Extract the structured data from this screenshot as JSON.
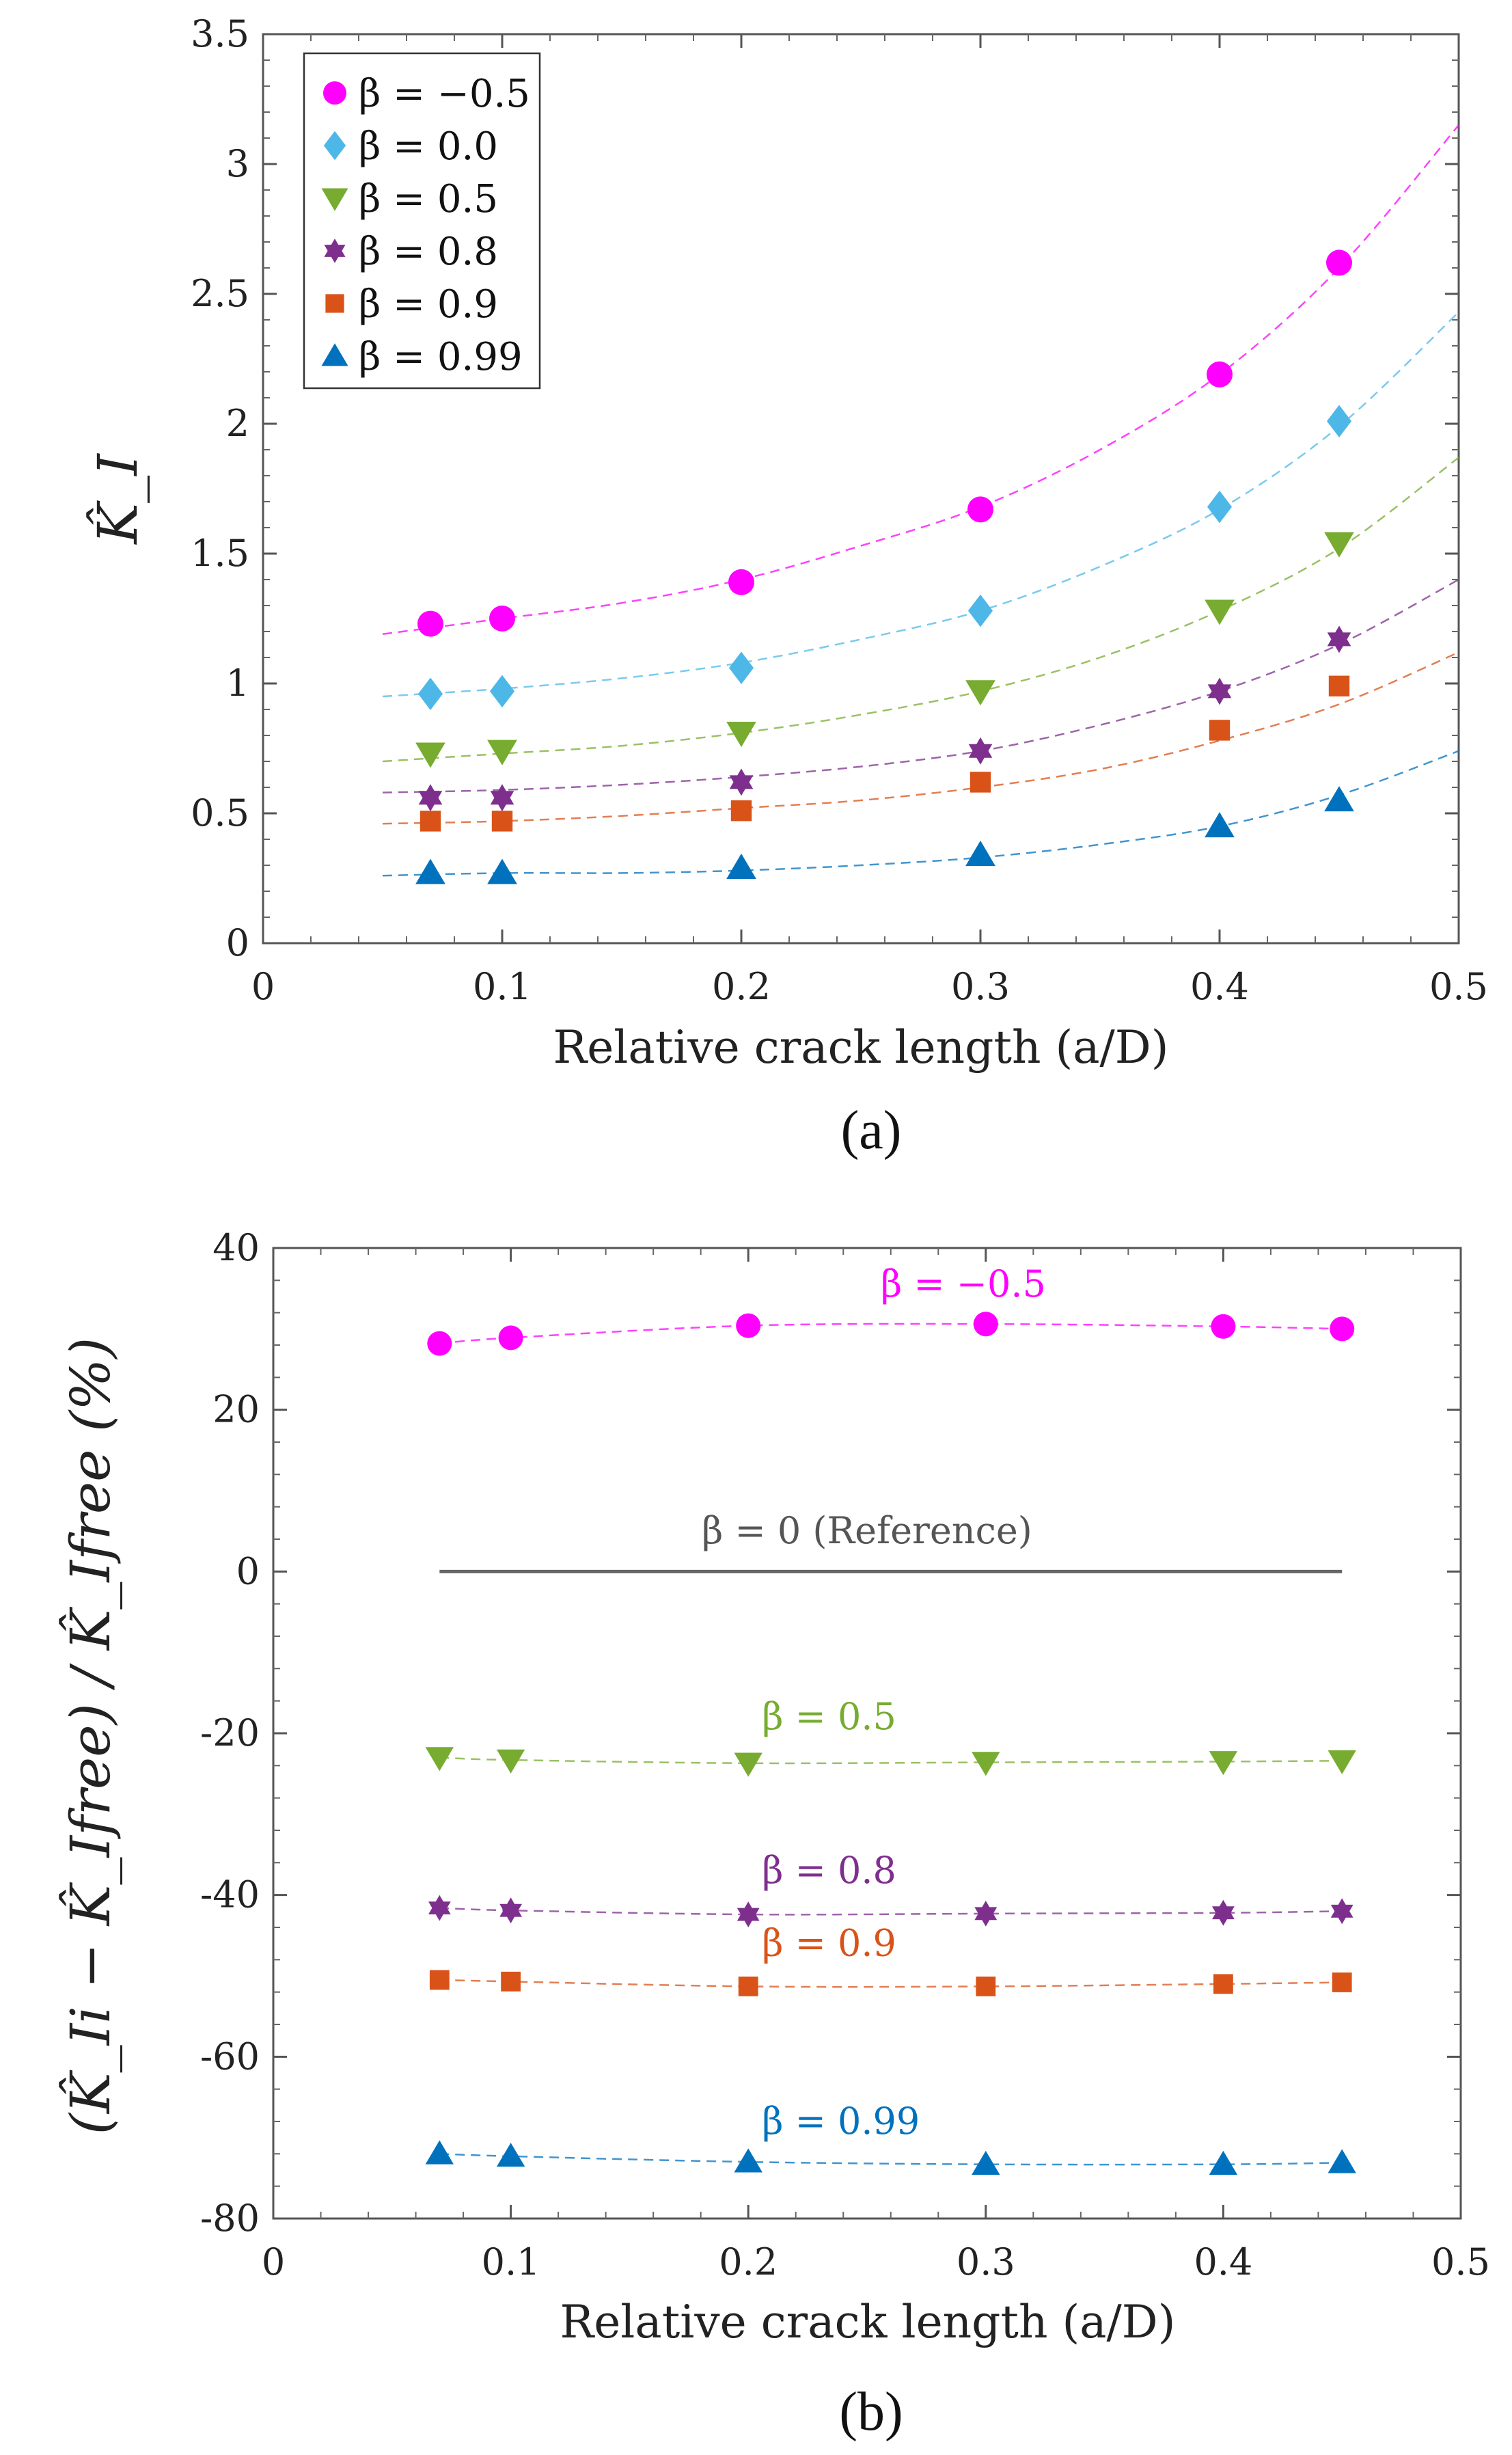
{
  "chart_data": [
    {
      "type": "scatter",
      "panel_caption": "(a)",
      "xlabel": "Relative crack length (a/D)",
      "ylabel": "K̂_I",
      "xlim": [
        0,
        0.5
      ],
      "ylim": [
        0,
        3.5
      ],
      "x_ticks": [
        "0",
        "0.1",
        "0.2",
        "0.3",
        "0.4",
        "0.5"
      ],
      "y_ticks": [
        "0",
        "0.5",
        "1",
        "1.5",
        "2",
        "2.5",
        "3",
        "3.5"
      ],
      "x_tick_values": [
        0,
        0.1,
        0.2,
        0.3,
        0.4,
        0.5
      ],
      "y_tick_values": [
        0,
        0.5,
        1,
        1.5,
        2,
        2.5,
        3,
        3.5
      ],
      "legend_position": "top-left",
      "x": [
        0.07,
        0.1,
        0.2,
        0.3,
        0.4,
        0.45
      ],
      "fit_x": [
        0.05,
        0.1,
        0.15,
        0.2,
        0.25,
        0.3,
        0.35,
        0.4,
        0.45,
        0.5
      ],
      "series": [
        {
          "name": "β = −0.5",
          "color": "#ff00ff",
          "marker": "circle",
          "values": [
            1.23,
            1.25,
            1.39,
            1.67,
            2.19,
            2.62
          ],
          "fit": [
            1.19,
            1.25,
            1.31,
            1.4,
            1.53,
            1.68,
            1.9,
            2.19,
            2.6,
            3.15
          ]
        },
        {
          "name": "β = 0.0",
          "color": "#4db8e8",
          "marker": "diamond",
          "values": [
            0.96,
            0.97,
            1.06,
            1.28,
            1.68,
            2.01
          ],
          "fit": [
            0.95,
            0.98,
            1.02,
            1.08,
            1.17,
            1.28,
            1.45,
            1.67,
            1.99,
            2.43
          ]
        },
        {
          "name": "β = 0.5",
          "color": "#77ac30",
          "marker": "triangle-down",
          "values": [
            0.73,
            0.74,
            0.81,
            0.97,
            1.28,
            1.54
          ],
          "fit": [
            0.7,
            0.73,
            0.76,
            0.81,
            0.88,
            0.97,
            1.1,
            1.28,
            1.52,
            1.87
          ]
        },
        {
          "name": "β = 0.8",
          "color": "#7e2f8e",
          "marker": "hexagram",
          "values": [
            0.56,
            0.56,
            0.62,
            0.74,
            0.97,
            1.17
          ],
          "fit": [
            0.58,
            0.59,
            0.61,
            0.64,
            0.68,
            0.74,
            0.84,
            0.97,
            1.15,
            1.4
          ]
        },
        {
          "name": "β = 0.9",
          "color": "#d95319",
          "marker": "square",
          "values": [
            0.47,
            0.47,
            0.51,
            0.62,
            0.82,
            0.99
          ],
          "fit": [
            0.46,
            0.47,
            0.49,
            0.52,
            0.55,
            0.6,
            0.67,
            0.78,
            0.92,
            1.12
          ]
        },
        {
          "name": "β = 0.99",
          "color": "#0072bd",
          "marker": "triangle-up",
          "values": [
            0.27,
            0.27,
            0.29,
            0.34,
            0.45,
            0.55
          ],
          "fit": [
            0.26,
            0.27,
            0.27,
            0.28,
            0.3,
            0.33,
            0.38,
            0.45,
            0.57,
            0.74
          ]
        }
      ]
    },
    {
      "type": "scatter",
      "panel_caption": "(b)",
      "xlabel": "Relative crack length (a/D)",
      "ylabel": "(K̂_Ii − K̂_Ifree) / K̂_Ifree (%)",
      "xlim": [
        0,
        0.5
      ],
      "ylim": [
        -80,
        40
      ],
      "x_ticks": [
        "0",
        "0.1",
        "0.2",
        "0.3",
        "0.4",
        "0.5"
      ],
      "y_ticks": [
        "-80",
        "-60",
        "-40",
        "-20",
        "0",
        "20",
        "40"
      ],
      "x_tick_values": [
        0,
        0.1,
        0.2,
        0.3,
        0.4,
        0.5
      ],
      "y_tick_values": [
        -80,
        -60,
        -40,
        -20,
        0,
        20,
        40
      ],
      "x": [
        0.07,
        0.1,
        0.2,
        0.3,
        0.4,
        0.45
      ],
      "reference": {
        "label": "β = 0 (Reference)",
        "color": "#666666",
        "value": 0,
        "x_range": [
          0.07,
          0.45
        ]
      },
      "series": [
        {
          "name": "β = −0.5",
          "color": "#ff00ff",
          "marker": "circle",
          "values": [
            28.2,
            28.9,
            30.4,
            30.6,
            30.3,
            30.0
          ]
        },
        {
          "name": "β = 0.5",
          "color": "#77ac30",
          "marker": "triangle-down",
          "values": [
            -23.0,
            -23.3,
            -23.7,
            -23.6,
            -23.5,
            -23.4
          ]
        },
        {
          "name": "β = 0.8",
          "color": "#7e2f8e",
          "marker": "hexagram",
          "values": [
            -41.6,
            -41.9,
            -42.4,
            -42.3,
            -42.2,
            -42.0
          ]
        },
        {
          "name": "β = 0.9",
          "color": "#d95319",
          "marker": "square",
          "values": [
            -50.5,
            -50.7,
            -51.3,
            -51.3,
            -51.0,
            -50.8
          ]
        },
        {
          "name": "β = 0.99",
          "color": "#0072bd",
          "marker": "triangle-up",
          "values": [
            -72.0,
            -72.3,
            -73.0,
            -73.3,
            -73.3,
            -73.1
          ]
        }
      ]
    }
  ],
  "annotations_b": [
    {
      "text": "β = −0.5",
      "x": 0.25,
      "y": 34,
      "color": "#ff00ff"
    },
    {
      "text": "β = 0 (Reference)",
      "x": 0.25,
      "y": 3.5,
      "color": "#555555"
    },
    {
      "text": "β = 0.5",
      "x": 0.2,
      "y": -19.5,
      "color": "#77ac30"
    },
    {
      "text": "β = 0.8",
      "x": 0.2,
      "y": -38.5,
      "color": "#7e2f8e"
    },
    {
      "text": "β = 0.9",
      "x": 0.2,
      "y": -47.5,
      "color": "#d95319"
    },
    {
      "text": "β = 0.99",
      "x": 0.2,
      "y": -69.5,
      "color": "#0072bd"
    }
  ]
}
